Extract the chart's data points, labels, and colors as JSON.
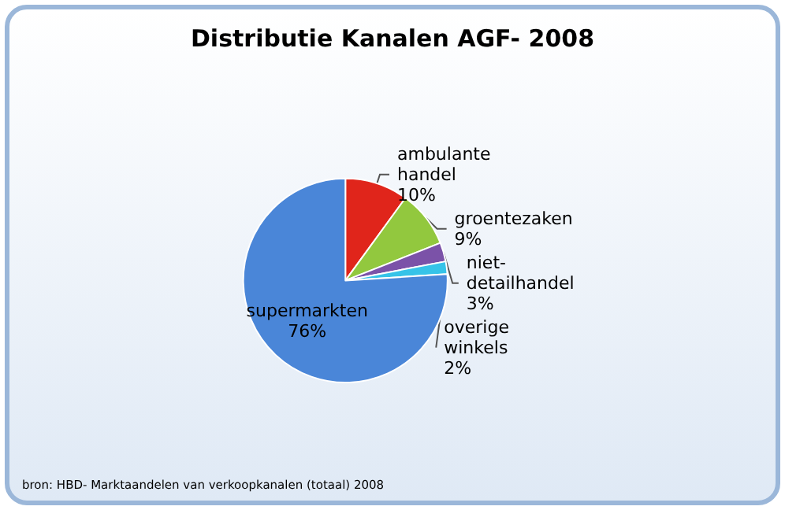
{
  "chart_data": {
    "type": "pie",
    "title": "Distributie Kanalen AGF- 2008",
    "categories": [
      "ambulante handel",
      "groentezaken",
      "niet-detailhandel",
      "overige winkels",
      "supermarkten"
    ],
    "values": [
      10,
      9,
      3,
      2,
      76
    ],
    "colors": [
      "#e0251b",
      "#92c83e",
      "#7b52a8",
      "#36c3e8",
      "#4a86d8"
    ],
    "value_labels": [
      "10%",
      "9%",
      "3%",
      "2%",
      "76%"
    ],
    "annotations": [
      "bron: HBD- Marktaandelen van verkoopkanalen (totaal) 2008"
    ]
  }
}
